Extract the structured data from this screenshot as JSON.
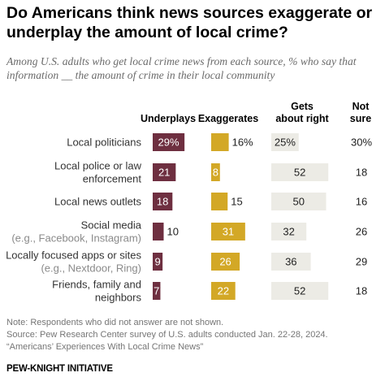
{
  "title": "Do Americans think news sources exaggerate or underplay the amount of local crime?",
  "subtitle": "Among U.S. adults who get local crime news from each source, % who say that information __ the amount of crime in their local community",
  "colors": {
    "underplays": "#6e2f40",
    "exaggerates": "#d3a826",
    "about_right": "#ecebe5",
    "label_text": "#333333",
    "note_text": "#757575"
  },
  "chart_data": {
    "type": "bar",
    "columns": [
      "Underplays",
      "Exaggerates",
      "Gets about right",
      "Not sure"
    ],
    "categories": [
      [
        "Local politicians"
      ],
      [
        "Local police or law",
        "enforcement"
      ],
      [
        "Local news outlets"
      ],
      [
        "Social media",
        "(e.g., Facebook, Instagram)"
      ],
      [
        "Locally focused apps or sites",
        "(e.g., Nextdoor, Ring)"
      ],
      [
        "Friends, family and",
        "neighbors"
      ]
    ],
    "series": [
      {
        "name": "Underplays",
        "values": [
          29,
          21,
          18,
          10,
          9,
          7
        ],
        "labels": [
          "29%",
          "21",
          "18",
          "10",
          "9",
          "7"
        ]
      },
      {
        "name": "Exaggerates",
        "values": [
          16,
          8,
          15,
          31,
          26,
          22
        ],
        "labels": [
          "16%",
          "8",
          "15",
          "31",
          "26",
          "22"
        ]
      },
      {
        "name": "Gets about right",
        "values": [
          25,
          52,
          50,
          32,
          36,
          52
        ],
        "labels": [
          "25%",
          "52",
          "50",
          "32",
          "36",
          "52"
        ]
      }
    ],
    "not_sure": [
      "30%",
      "18",
      "16",
      "26",
      "29",
      "18"
    ]
  },
  "notes": [
    "Note: Respondents who did not answer are not shown.",
    "Source: Pew Research Center survey of U.S. adults conducted Jan. 22-28, 2024.",
    "“Americans’ Experiences With Local Crime News”"
  ],
  "brand": "PEW-KNIGHT INITIATIVE"
}
